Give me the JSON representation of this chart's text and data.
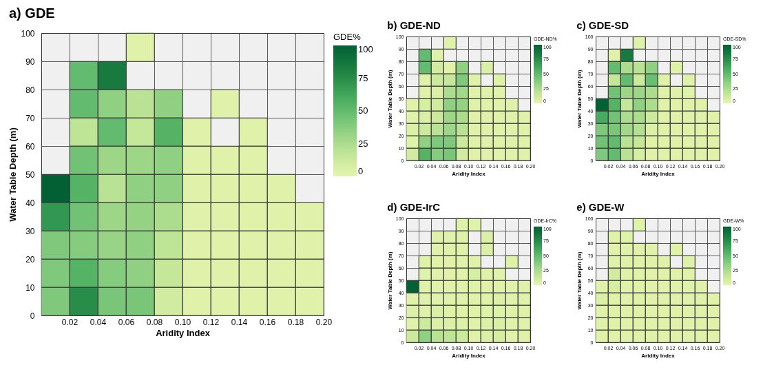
{
  "chart_data": [
    {
      "type": "heatmap",
      "title": "a) GDE",
      "xlabel": "Aridity Index",
      "ylabel": "Water Table Depth (m)",
      "clabel": "GDE%",
      "grid": true,
      "xlim": [
        0,
        0.2
      ],
      "xticks": [
        {
          "value": 0.02,
          "label": "0.02"
        },
        {
          "value": 0.04,
          "label": "0.04"
        },
        {
          "value": 0.06,
          "label": "0.06"
        },
        {
          "value": 0.08,
          "label": "0.08"
        },
        {
          "value": 0.1,
          "label": "0.10"
        },
        {
          "value": 0.12,
          "label": "0.12"
        },
        {
          "value": 0.14,
          "label": "0.14"
        },
        {
          "value": 0.16,
          "label": "0.16"
        },
        {
          "value": 0.18,
          "label": "0.18"
        },
        {
          "value": 0.2,
          "label": "0.20"
        }
      ],
      "ylim": [
        0,
        100
      ],
      "yticks": [
        0,
        10,
        20,
        30,
        40,
        50,
        60,
        70,
        80,
        90,
        100
      ],
      "clim": [
        0,
        100
      ],
      "cticks": [
        0,
        25,
        50,
        75,
        100
      ],
      "cells": [
        [
          null,
          null,
          null,
          2,
          null,
          null,
          null,
          null,
          null,
          null
        ],
        [
          null,
          50,
          85,
          null,
          null,
          null,
          null,
          null,
          null,
          null
        ],
        [
          null,
          50,
          35,
          20,
          35,
          null,
          2,
          null,
          null,
          null
        ],
        [
          null,
          18,
          50,
          15,
          55,
          2,
          null,
          2,
          null,
          null
        ],
        [
          null,
          45,
          30,
          30,
          35,
          2,
          2,
          2,
          null,
          null
        ],
        [
          100,
          55,
          20,
          35,
          35,
          2,
          2,
          2,
          2,
          null
        ],
        [
          70,
          45,
          30,
          33,
          25,
          2,
          2,
          2,
          2,
          2
        ],
        [
          40,
          38,
          32,
          35,
          18,
          2,
          2,
          2,
          2,
          2
        ],
        [
          40,
          55,
          38,
          35,
          15,
          2,
          2,
          2,
          2,
          2
        ],
        [
          40,
          75,
          42,
          42,
          10,
          2,
          2,
          2,
          2,
          2
        ]
      ]
    },
    {
      "type": "heatmap",
      "title": "b) GDE-ND",
      "xlabel": "Aridity Index",
      "ylabel": "Water Table Depth (m)",
      "clabel": "GDE-ND%",
      "grid": true,
      "xlim": [
        0,
        0.2
      ],
      "xticks": [
        {
          "value": 0.02,
          "label": "0.02"
        },
        {
          "value": 0.04,
          "label": "0.04"
        },
        {
          "value": 0.06,
          "label": "0.06"
        },
        {
          "value": 0.08,
          "label": "0.08"
        },
        {
          "value": 0.1,
          "label": "0.10"
        },
        {
          "value": 0.12,
          "label": "0.12"
        },
        {
          "value": 0.14,
          "label": "0.14"
        },
        {
          "value": 0.16,
          "label": "0.16"
        },
        {
          "value": 0.18,
          "label": "0.18"
        },
        {
          "value": 0.2,
          "label": "0.20"
        }
      ],
      "ylim": [
        0,
        100
      ],
      "yticks": [
        0,
        10,
        20,
        30,
        40,
        50,
        60,
        70,
        80,
        90,
        100
      ],
      "clim": [
        0,
        100
      ],
      "cticks": [
        0,
        25,
        50,
        75,
        100
      ],
      "cells": [
        [
          null,
          null,
          null,
          2,
          null,
          null,
          null,
          null,
          null,
          null
        ],
        [
          null,
          50,
          2,
          null,
          null,
          null,
          null,
          null,
          null,
          null
        ],
        [
          null,
          50,
          10,
          2,
          35,
          null,
          5,
          null,
          null,
          null
        ],
        [
          null,
          2,
          12,
          15,
          40,
          2,
          null,
          2,
          null,
          null
        ],
        [
          null,
          2,
          5,
          25,
          28,
          2,
          2,
          2,
          null,
          null
        ],
        [
          2,
          8,
          10,
          35,
          33,
          2,
          2,
          2,
          2,
          null
        ],
        [
          2,
          5,
          12,
          30,
          25,
          2,
          2,
          2,
          2,
          2
        ],
        [
          5,
          12,
          20,
          30,
          20,
          2,
          2,
          2,
          2,
          2
        ],
        [
          3,
          35,
          40,
          40,
          12,
          2,
          2,
          2,
          2,
          2
        ],
        [
          10,
          55,
          38,
          42,
          10,
          2,
          2,
          2,
          2,
          2
        ]
      ]
    },
    {
      "type": "heatmap",
      "title": "c) GDE-SD",
      "xlabel": "Aridity Index",
      "ylabel": "Water Table Depth (m)",
      "clabel": "GDE-SD%",
      "grid": true,
      "xlim": [
        0,
        0.2
      ],
      "xticks": [
        {
          "value": 0.02,
          "label": "0.02"
        },
        {
          "value": 0.04,
          "label": "0.04"
        },
        {
          "value": 0.06,
          "label": "0.06"
        },
        {
          "value": 0.08,
          "label": "0.08"
        },
        {
          "value": 0.1,
          "label": "0.10"
        },
        {
          "value": 0.12,
          "label": "0.12"
        },
        {
          "value": 0.14,
          "label": "0.14"
        },
        {
          "value": 0.16,
          "label": "0.16"
        },
        {
          "value": 0.18,
          "label": "0.18"
        },
        {
          "value": 0.2,
          "label": "0.20"
        }
      ],
      "ylim": [
        0,
        100
      ],
      "yticks": [
        0,
        10,
        20,
        30,
        40,
        50,
        60,
        70,
        80,
        90,
        100
      ],
      "clim": [
        0,
        100
      ],
      "cticks": [
        0,
        25,
        50,
        75,
        100
      ],
      "cells": [
        [
          null,
          null,
          null,
          2,
          null,
          null,
          null,
          null,
          null,
          null
        ],
        [
          null,
          2,
          85,
          null,
          null,
          null,
          null,
          null,
          null,
          null
        ],
        [
          null,
          50,
          25,
          20,
          35,
          null,
          3,
          null,
          null,
          null
        ],
        [
          null,
          15,
          50,
          12,
          48,
          2,
          null,
          2,
          null,
          null
        ],
        [
          null,
          45,
          30,
          30,
          25,
          2,
          2,
          2,
          null,
          null
        ],
        [
          100,
          55,
          15,
          35,
          25,
          2,
          2,
          2,
          2,
          null
        ],
        [
          60,
          45,
          25,
          25,
          12,
          2,
          2,
          2,
          2,
          2
        ],
        [
          40,
          42,
          28,
          22,
          5,
          2,
          2,
          2,
          2,
          2
        ],
        [
          45,
          50,
          20,
          15,
          3,
          2,
          2,
          2,
          2,
          2
        ],
        [
          40,
          50,
          20,
          8,
          2,
          2,
          2,
          2,
          2,
          2
        ]
      ]
    },
    {
      "type": "heatmap",
      "title": "d) GDE-IrC",
      "xlabel": "Aridity Index",
      "ylabel": "Water Table Depth (m)",
      "clabel": "GDE-IrC%",
      "grid": true,
      "xlim": [
        0,
        0.2
      ],
      "xticks": [
        {
          "value": 0.02,
          "label": "0.02"
        },
        {
          "value": 0.04,
          "label": "0.04"
        },
        {
          "value": 0.06,
          "label": "0.06"
        },
        {
          "value": 0.08,
          "label": "0.08"
        },
        {
          "value": 0.1,
          "label": "0.10"
        },
        {
          "value": 0.12,
          "label": "0.12"
        },
        {
          "value": 0.14,
          "label": "0.14"
        },
        {
          "value": 0.16,
          "label": "0.16"
        },
        {
          "value": 0.18,
          "label": "0.18"
        },
        {
          "value": 0.2,
          "label": "0.20"
        }
      ],
      "ylim": [
        0,
        100
      ],
      "yticks": [
        0,
        10,
        20,
        30,
        40,
        50,
        60,
        70,
        80,
        90,
        100
      ],
      "clim": [
        0,
        100
      ],
      "cticks": [
        0,
        25,
        50,
        75,
        100
      ],
      "cells": [
        [
          null,
          null,
          null,
          null,
          3,
          3,
          null,
          null,
          null,
          null
        ],
        [
          null,
          null,
          2,
          2,
          2,
          null,
          5,
          null,
          null,
          null
        ],
        [
          null,
          null,
          2,
          2,
          2,
          null,
          5,
          null,
          null,
          null
        ],
        [
          null,
          2,
          2,
          2,
          2,
          2,
          null,
          null,
          3,
          null
        ],
        [
          null,
          2,
          2,
          2,
          2,
          8,
          2,
          2,
          null,
          null
        ],
        [
          100,
          2,
          2,
          2,
          2,
          3,
          2,
          2,
          2,
          2
        ],
        [
          2,
          2,
          2,
          3,
          3,
          3,
          3,
          4,
          2,
          2
        ],
        [
          4,
          2,
          5,
          3,
          3,
          3,
          3,
          3,
          2,
          2
        ],
        [
          2,
          12,
          5,
          5,
          4,
          2,
          4,
          6,
          2,
          2
        ],
        [
          12,
          35,
          20,
          18,
          12,
          3,
          5,
          8,
          2,
          2
        ]
      ]
    },
    {
      "type": "heatmap",
      "title": "e) GDE-W",
      "xlabel": "Aridity Index",
      "ylabel": "Water Table Depth (m)",
      "clabel": "GDE-W%",
      "grid": true,
      "xlim": [
        0,
        0.2
      ],
      "xticks": [
        {
          "value": 0.02,
          "label": "0.02"
        },
        {
          "value": 0.04,
          "label": "0.04"
        },
        {
          "value": 0.06,
          "label": "0.06"
        },
        {
          "value": 0.08,
          "label": "0.08"
        },
        {
          "value": 0.1,
          "label": "0.10"
        },
        {
          "value": 0.12,
          "label": "0.12"
        },
        {
          "value": 0.14,
          "label": "0.14"
        },
        {
          "value": 0.16,
          "label": "0.16"
        },
        {
          "value": 0.18,
          "label": "0.18"
        },
        {
          "value": 0.2,
          "label": "0.20"
        }
      ],
      "ylim": [
        0,
        100
      ],
      "yticks": [
        0,
        10,
        20,
        30,
        40,
        50,
        60,
        70,
        80,
        90,
        100
      ],
      "clim": [
        0,
        100
      ],
      "cticks": [
        0,
        25,
        50,
        75,
        100
      ],
      "cells": [
        [
          null,
          null,
          null,
          3,
          null,
          null,
          null,
          null,
          null,
          null
        ],
        [
          null,
          3,
          3,
          null,
          null,
          null,
          null,
          null,
          null,
          null
        ],
        [
          null,
          2,
          2,
          2,
          2,
          null,
          3,
          null,
          null,
          null
        ],
        [
          null,
          2,
          2,
          2,
          2,
          2,
          null,
          2,
          null,
          null
        ],
        [
          null,
          10,
          3,
          2,
          2,
          2,
          2,
          2,
          null,
          null
        ],
        [
          2,
          8,
          2,
          2,
          2,
          2,
          2,
          2,
          2,
          null
        ],
        [
          4,
          2,
          2,
          2,
          2,
          2,
          2,
          2,
          2,
          2
        ],
        [
          2,
          2,
          2,
          2,
          2,
          2,
          2,
          2,
          2,
          2
        ],
        [
          2,
          2,
          2,
          2,
          2,
          2,
          2,
          2,
          2,
          2
        ],
        [
          2,
          2,
          2,
          2,
          2,
          2,
          2,
          2,
          2,
          2
        ]
      ]
    }
  ]
}
